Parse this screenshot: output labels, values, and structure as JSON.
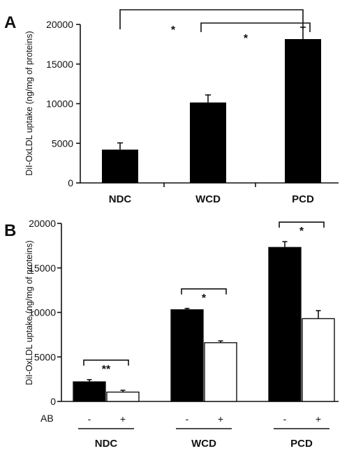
{
  "chart_data": [
    {
      "panel": "A",
      "type": "bar",
      "ylabel": "DiI-OxLDL uptake (ng/mg of proteins)",
      "ylim": [
        0,
        20000
      ],
      "yticks": [
        "0",
        "5000",
        "10000",
        "15000",
        "20000"
      ],
      "categories": [
        "NDC",
        "WCD",
        "PCD"
      ],
      "values": [
        4200,
        10150,
        18150
      ],
      "errors": [
        850,
        950,
        1500
      ],
      "colors": {
        "bar": "#000000"
      },
      "annotations": [
        {
          "from": "NDC",
          "to": "PCD",
          "label": "*"
        },
        {
          "from": "WCD",
          "to": "PCD",
          "label": "*"
        }
      ]
    },
    {
      "panel": "B",
      "type": "bar",
      "ylabel": "DiI-OxLDL uptake (ng/mg of proteins)",
      "ylim": [
        0,
        20000
      ],
      "yticks": [
        "0",
        "5000",
        "10000",
        "15000",
        "20000"
      ],
      "categories": [
        "NDC",
        "WCD",
        "PCD"
      ],
      "ab_row_label": "AB",
      "ab_marks": [
        "-",
        "+"
      ],
      "series": [
        {
          "values": [
            2200,
            10300,
            17300
          ],
          "errors": [
            250,
            150,
            650
          ],
          "color": "#000000"
        },
        {
          "values": [
            1050,
            6600,
            9300
          ],
          "errors": [
            200,
            200,
            900
          ],
          "color": "#ffffff"
        }
      ],
      "annotations": [
        {
          "category": "NDC",
          "label": "**"
        },
        {
          "category": "WCD",
          "label": "*"
        },
        {
          "category": "PCD",
          "label": "*"
        }
      ]
    }
  ]
}
